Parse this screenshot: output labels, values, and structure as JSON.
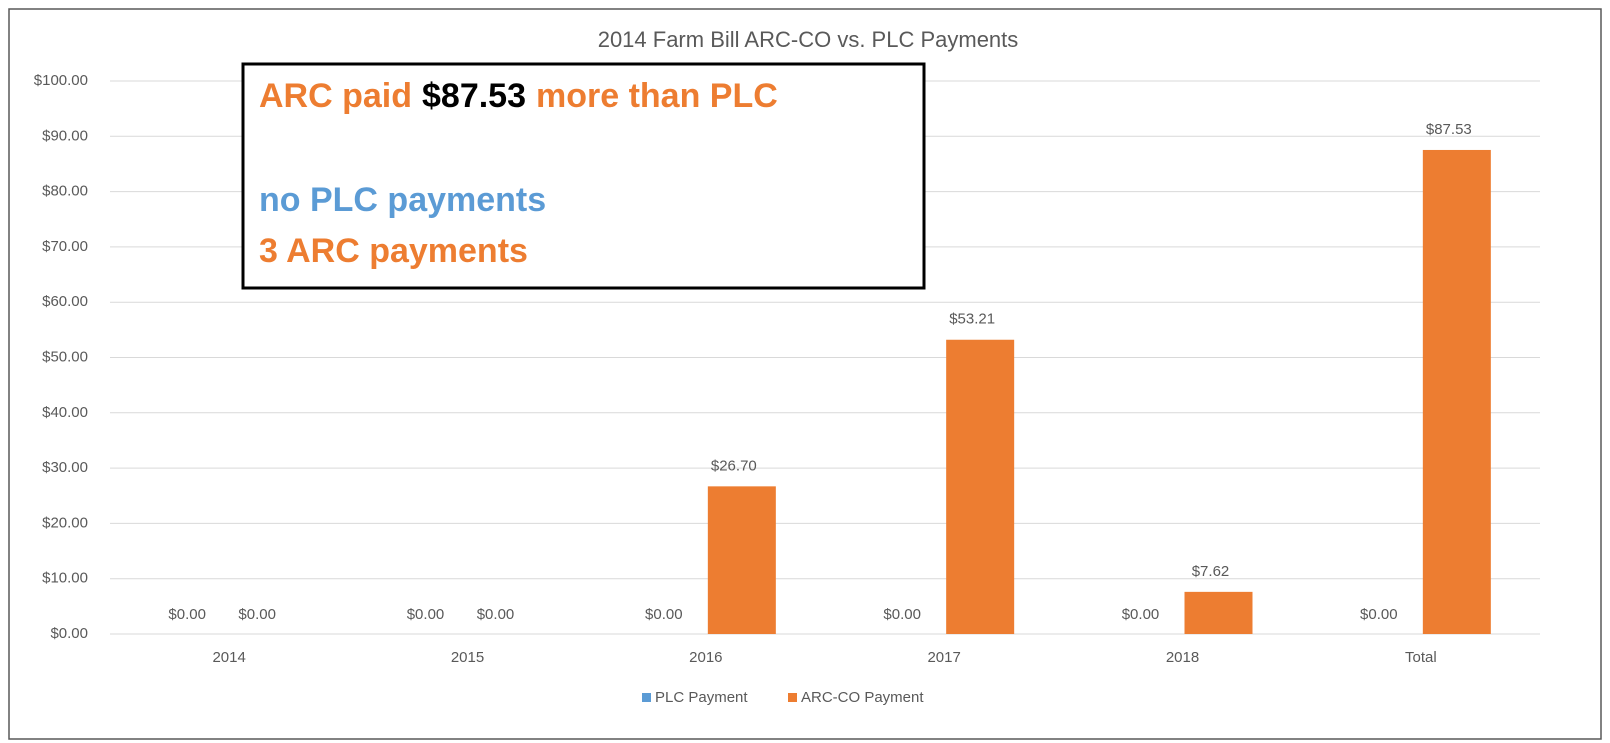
{
  "chart_data": {
    "type": "bar",
    "title": "2014 Farm Bill ARC-CO vs. PLC Payments",
    "categories": [
      "2014",
      "2015",
      "2016",
      "2017",
      "2018",
      "Total"
    ],
    "series": [
      {
        "name": "PLC Payment",
        "color": "#5b9bd5",
        "values": [
          0,
          0,
          0,
          0,
          0,
          0
        ],
        "value_labels": [
          "$0.00",
          "$0.00",
          "$0.00",
          "$0.00",
          "$0.00",
          "$0.00"
        ]
      },
      {
        "name": "ARC-CO Payment",
        "color": "#ed7d31",
        "values": [
          0,
          0,
          26.7,
          53.21,
          7.62,
          87.53
        ],
        "value_labels": [
          "$0.00",
          "$0.00",
          "$26.70",
          "$53.21",
          "$7.62",
          "$87.53"
        ]
      }
    ],
    "ylim": [
      0,
      100
    ],
    "yticks": [
      {
        "value": 0,
        "label": "$0.00"
      },
      {
        "value": 10,
        "label": "$10.00"
      },
      {
        "value": 20,
        "label": "$20.00"
      },
      {
        "value": 30,
        "label": "$30.00"
      },
      {
        "value": 40,
        "label": "$40.00"
      },
      {
        "value": 50,
        "label": "$50.00"
      },
      {
        "value": 60,
        "label": "$60.00"
      },
      {
        "value": 70,
        "label": "$70.00"
      },
      {
        "value": 80,
        "label": "$80.00"
      },
      {
        "value": 90,
        "label": "$90.00"
      },
      {
        "value": 100,
        "label": "$100.00"
      }
    ],
    "grid": true,
    "legend": "bottom",
    "annotation": {
      "lines": [
        [
          {
            "text": "ARC paid",
            "color": "#ed7d31"
          },
          {
            "text": "$87.53",
            "color": "#000000"
          },
          {
            "text": "more than PLC",
            "color": "#ed7d31"
          }
        ],
        [
          {
            "text": "no PLC payments",
            "color": "#5b9bd5"
          }
        ],
        [
          {
            "text": "3 ARC payments",
            "color": "#ed7d31"
          }
        ]
      ]
    }
  }
}
